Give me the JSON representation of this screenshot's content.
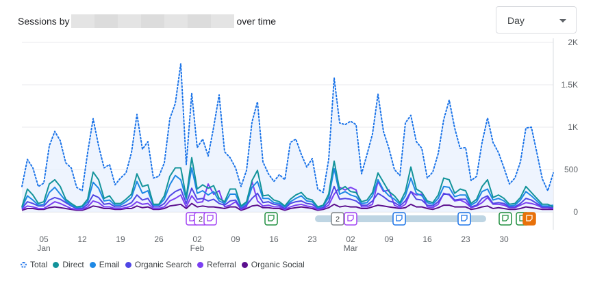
{
  "header": {
    "title_prefix": "Sessions by",
    "title_suffix": "over time"
  },
  "granularity_select": {
    "value": "Day"
  },
  "annotations": [
    {
      "label": "",
      "color": "#a142f4"
    },
    {
      "label": "2",
      "color": "#a142f4"
    },
    {
      "label": "",
      "color": "#a142f4"
    },
    {
      "label": "",
      "color": "#1e8e3e"
    },
    {
      "label": "2",
      "color": "#80868b"
    },
    {
      "label": "",
      "color": "#a142f4"
    },
    {
      "label": "",
      "color": "#1a73e8"
    },
    {
      "label": "",
      "color": "#1a73e8"
    },
    {
      "label": "",
      "color": "#1e8e3e"
    },
    {
      "label": "",
      "color": "#1e8e3e"
    },
    {
      "label": "",
      "color": "#e8710a"
    }
  ],
  "chart_data": {
    "type": "line",
    "title": "",
    "xlabel": "",
    "ylabel": "",
    "ylim": [
      0,
      2000
    ],
    "y_ticks": [
      "0",
      "500",
      "1K",
      "1.5K",
      "2K"
    ],
    "x_tick_labels": [
      "05",
      "12",
      "19",
      "26",
      "02",
      "09",
      "16",
      "23",
      "02",
      "09",
      "16",
      "23",
      "30"
    ],
    "x_month_labels": [
      "Jan",
      "Feb",
      "Mar"
    ],
    "legend_position": "bottom",
    "grid": true,
    "series": [
      {
        "name": "Total",
        "color": "#1a73e8",
        "style": "dotted",
        "values": [
          300,
          620,
          520,
          300,
          340,
          780,
          950,
          840,
          580,
          520,
          290,
          250,
          700,
          1100,
          780,
          520,
          560,
          320,
          400,
          460,
          700,
          1150,
          740,
          830,
          400,
          420,
          580,
          1100,
          1280,
          1750,
          560,
          1400,
          760,
          860,
          660,
          1000,
          1380,
          710,
          640,
          520,
          300,
          490,
          1060,
          1300,
          590,
          450,
          360,
          440,
          380,
          820,
          860,
          680,
          530,
          630,
          270,
          230,
          620,
          1580,
          1050,
          1030,
          1070,
          1030,
          450,
          680,
          920,
          1390,
          950,
          750,
          500,
          430,
          1050,
          1140,
          830,
          750,
          400,
          470,
          690,
          1090,
          1320,
          990,
          750,
          760,
          370,
          420,
          820,
          1110,
          820,
          700,
          520,
          330,
          400,
          590,
          990,
          1000,
          700,
          390,
          250,
          460
        ]
      },
      {
        "name": "Direct",
        "color": "#12939a",
        "style": "solid",
        "values": [
          60,
          270,
          200,
          100,
          120,
          330,
          380,
          300,
          150,
          100,
          60,
          70,
          150,
          470,
          380,
          160,
          190,
          100,
          100,
          150,
          210,
          450,
          300,
          320,
          90,
          90,
          190,
          420,
          520,
          520,
          170,
          640,
          270,
          320,
          280,
          310,
          160,
          120,
          270,
          270,
          70,
          120,
          370,
          490,
          190,
          200,
          140,
          120,
          70,
          150,
          200,
          230,
          160,
          140,
          60,
          80,
          210,
          600,
          260,
          300,
          240,
          230,
          120,
          140,
          230,
          460,
          350,
          240,
          190,
          110,
          240,
          530,
          270,
          230,
          130,
          110,
          200,
          400,
          380,
          220,
          270,
          250,
          100,
          150,
          300,
          380,
          170,
          200,
          160,
          90,
          100,
          170,
          300,
          230,
          160,
          90,
          90,
          60
        ]
      },
      {
        "name": "Email",
        "color": "#1e88e5",
        "style": "solid",
        "values": [
          50,
          190,
          140,
          80,
          90,
          230,
          290,
          210,
          130,
          80,
          50,
          60,
          120,
          350,
          280,
          130,
          140,
          80,
          80,
          120,
          170,
          360,
          220,
          250,
          80,
          80,
          150,
          320,
          430,
          380,
          150,
          520,
          220,
          250,
          200,
          240,
          130,
          100,
          210,
          210,
          60,
          100,
          290,
          360,
          160,
          160,
          110,
          100,
          60,
          120,
          160,
          190,
          130,
          120,
          50,
          70,
          170,
          510,
          210,
          240,
          200,
          180,
          100,
          110,
          190,
          380,
          260,
          190,
          150,
          90,
          190,
          400,
          220,
          190,
          110,
          90,
          160,
          300,
          290,
          180,
          200,
          200,
          80,
          120,
          240,
          270,
          140,
          160,
          130,
          70,
          80,
          140,
          240,
          190,
          130,
          70,
          70,
          80
        ]
      },
      {
        "name": "Organic Search",
        "color": "#4f46e5",
        "style": "solid",
        "values": [
          40,
          120,
          100,
          70,
          70,
          140,
          170,
          150,
          110,
          70,
          40,
          40,
          90,
          200,
          170,
          90,
          100,
          60,
          60,
          80,
          110,
          200,
          140,
          160,
          60,
          60,
          100,
          190,
          240,
          270,
          100,
          280,
          150,
          160,
          130,
          150,
          100,
          80,
          130,
          140,
          40,
          80,
          160,
          220,
          110,
          120,
          90,
          80,
          40,
          100,
          120,
          130,
          100,
          90,
          40,
          50,
          120,
          300,
          150,
          160,
          150,
          130,
          80,
          80,
          130,
          220,
          180,
          130,
          110,
          70,
          130,
          240,
          150,
          140,
          80,
          70,
          120,
          210,
          210,
          140,
          150,
          150,
          60,
          80,
          160,
          190,
          100,
          110,
          100,
          60,
          60,
          100,
          160,
          140,
          100,
          60,
          60,
          50
        ]
      },
      {
        "name": "Referral",
        "color": "#7b3ff2",
        "style": "solid",
        "values": [
          30,
          70,
          60,
          40,
          40,
          80,
          120,
          100,
          70,
          40,
          30,
          30,
          60,
          130,
          110,
          60,
          60,
          40,
          40,
          50,
          70,
          120,
          90,
          100,
          40,
          40,
          60,
          130,
          160,
          200,
          60,
          190,
          110,
          120,
          330,
          210,
          250,
          60,
          80,
          120,
          30,
          60,
          360,
          130,
          70,
          80,
          60,
          60,
          30,
          60,
          80,
          90,
          70,
          60,
          30,
          40,
          80,
          210,
          290,
          260,
          290,
          260,
          60,
          60,
          90,
          360,
          240,
          260,
          80,
          50,
          90,
          240,
          200,
          210,
          60,
          50,
          90,
          220,
          200,
          130,
          140,
          110,
          50,
          70,
          110,
          170,
          90,
          90,
          80,
          50,
          50,
          80,
          110,
          100,
          80,
          50,
          50,
          40
        ]
      },
      {
        "name": "Organic Social",
        "color": "#5b0f8e",
        "style": "solid",
        "values": [
          20,
          40,
          40,
          30,
          30,
          50,
          60,
          50,
          40,
          30,
          20,
          20,
          40,
          70,
          60,
          40,
          40,
          30,
          30,
          40,
          40,
          70,
          50,
          60,
          30,
          30,
          40,
          70,
          80,
          90,
          40,
          100,
          60,
          70,
          60,
          60,
          50,
          40,
          60,
          60,
          20,
          40,
          70,
          80,
          50,
          50,
          40,
          40,
          20,
          40,
          50,
          60,
          50,
          40,
          20,
          30,
          50,
          90,
          60,
          70,
          60,
          60,
          40,
          40,
          60,
          80,
          70,
          60,
          50,
          40,
          50,
          90,
          60,
          60,
          40,
          30,
          50,
          80,
          80,
          60,
          60,
          60,
          30,
          40,
          60,
          70,
          40,
          50,
          40,
          30,
          30,
          40,
          60,
          50,
          40,
          30,
          30,
          30
        ]
      }
    ]
  }
}
